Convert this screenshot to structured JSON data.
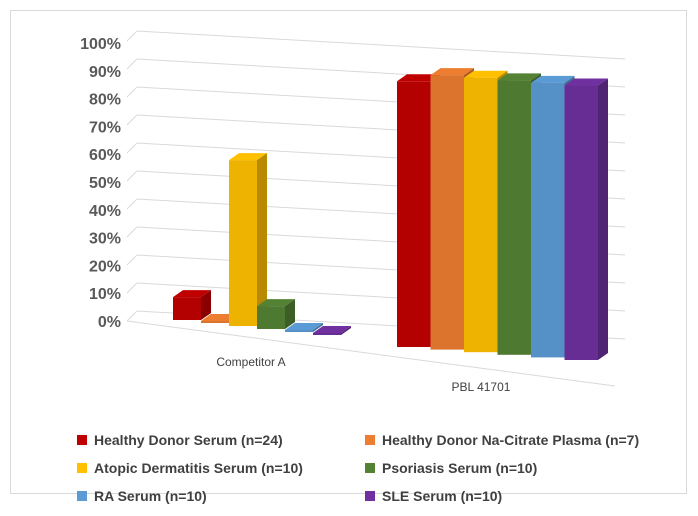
{
  "chart_data": {
    "type": "bar",
    "categories": [
      "Competitor A",
      "PBL 41701"
    ],
    "series": [
      {
        "name": "Healthy Donor Serum (n=24)",
        "values": [
          8,
          91
        ],
        "color": "#C00000"
      },
      {
        "name": "Healthy Donor Na-Citrate Plasma (n=7)",
        "values": [
          0,
          94
        ],
        "color": "#ED7D31"
      },
      {
        "name": "Atopic Dermatitis Serum (n=10)",
        "values": [
          58,
          94
        ],
        "color": "#FFC000"
      },
      {
        "name": "Psoriasis Serum (n=10)",
        "values": [
          8,
          94
        ],
        "color": "#548235"
      },
      {
        "name": "RA Serum (n=10)",
        "values": [
          0,
          94
        ],
        "color": "#5B9BD5"
      },
      {
        "name": "SLE Serum (n=10)",
        "values": [
          0,
          94
        ],
        "color": "#7030A0"
      }
    ],
    "yticks": [
      "0%",
      "10%",
      "20%",
      "30%",
      "40%",
      "50%",
      "60%",
      "70%",
      "80%",
      "90%",
      "100%"
    ],
    "ylim": [
      0,
      100
    ],
    "grid": true,
    "legend_position": "bottom",
    "style": "3d-clustered-column"
  }
}
